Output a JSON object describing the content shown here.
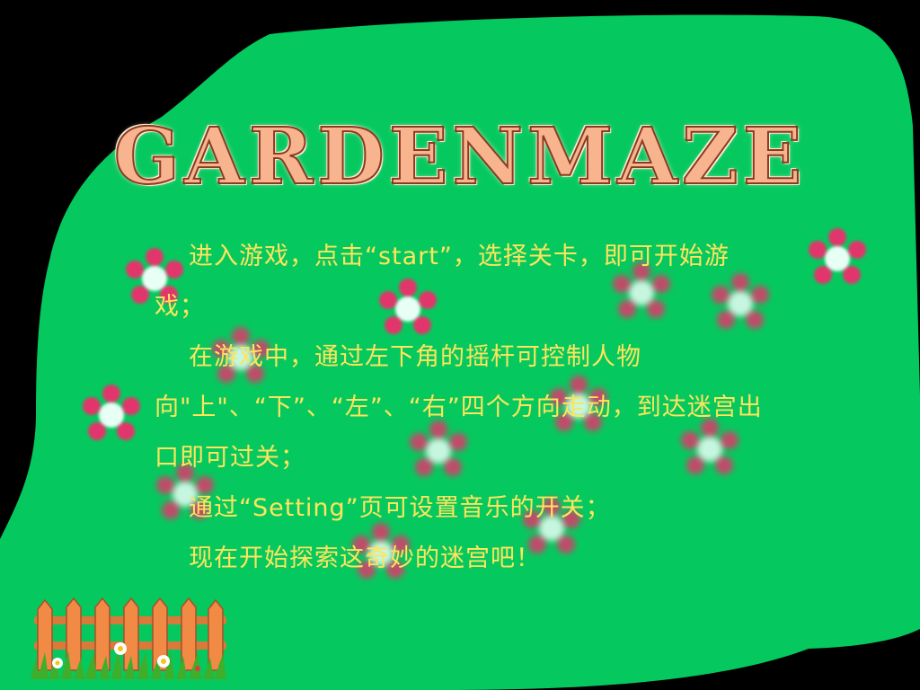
{
  "game": {
    "title": "GARDENMAZE"
  },
  "instructions": {
    "paragraphs": [
      "进入游戏，点击“start”，选择关卡，即可开始游戏；",
      "在游戏中，通过左下角的摇杆可控制人物向\"上\"、“下”、“左”、“右”四个方向走动，到达迷宫出口即可过关；",
      "通过“Setting”页可设置音乐的开关；",
      "现在开始探索这奇妙的迷宫吧！"
    ]
  },
  "colors": {
    "background": "#000000",
    "board_green": "#05c95f",
    "title_fill": "#f7b48e",
    "title_outline": "#8a3b1e",
    "text": "#ffe45c",
    "flower_petal": "#e2356b",
    "flower_center": "#e8fff6"
  },
  "decorations": {
    "flower_icon": "flower-icon",
    "fence_icon": "garden-fence-icon"
  }
}
